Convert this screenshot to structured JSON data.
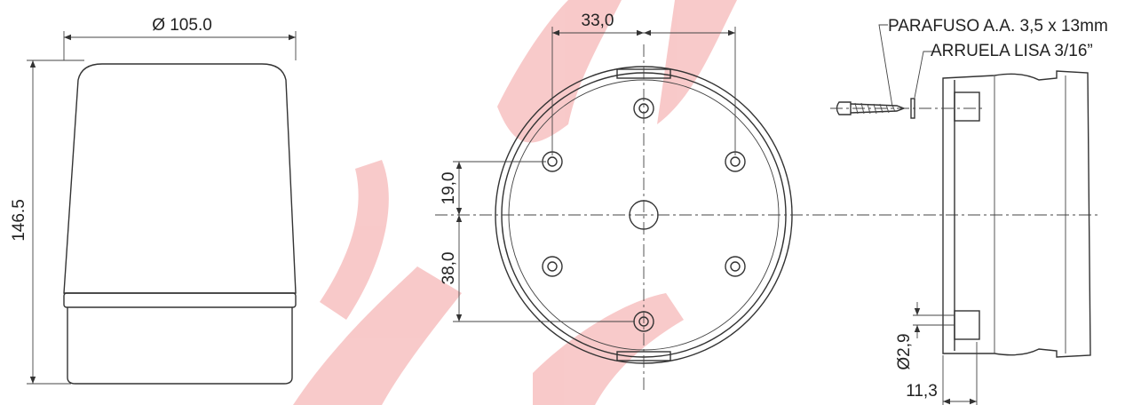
{
  "front_view": {
    "width_dim": "Ø 105.0",
    "height_dim": "146.5"
  },
  "bottom_view": {
    "hole_spacing_x": "33,0",
    "hole_offset_top": "19,0",
    "hole_offset_bottom": "38,0"
  },
  "side_view": {
    "screw_label": "PARAFUSO A.A. 3,5 x 13mm",
    "washer_label": "ARRUELA LISA 3/16”",
    "hole_diameter": "Ø2,9",
    "depth_dim": "11,3"
  }
}
